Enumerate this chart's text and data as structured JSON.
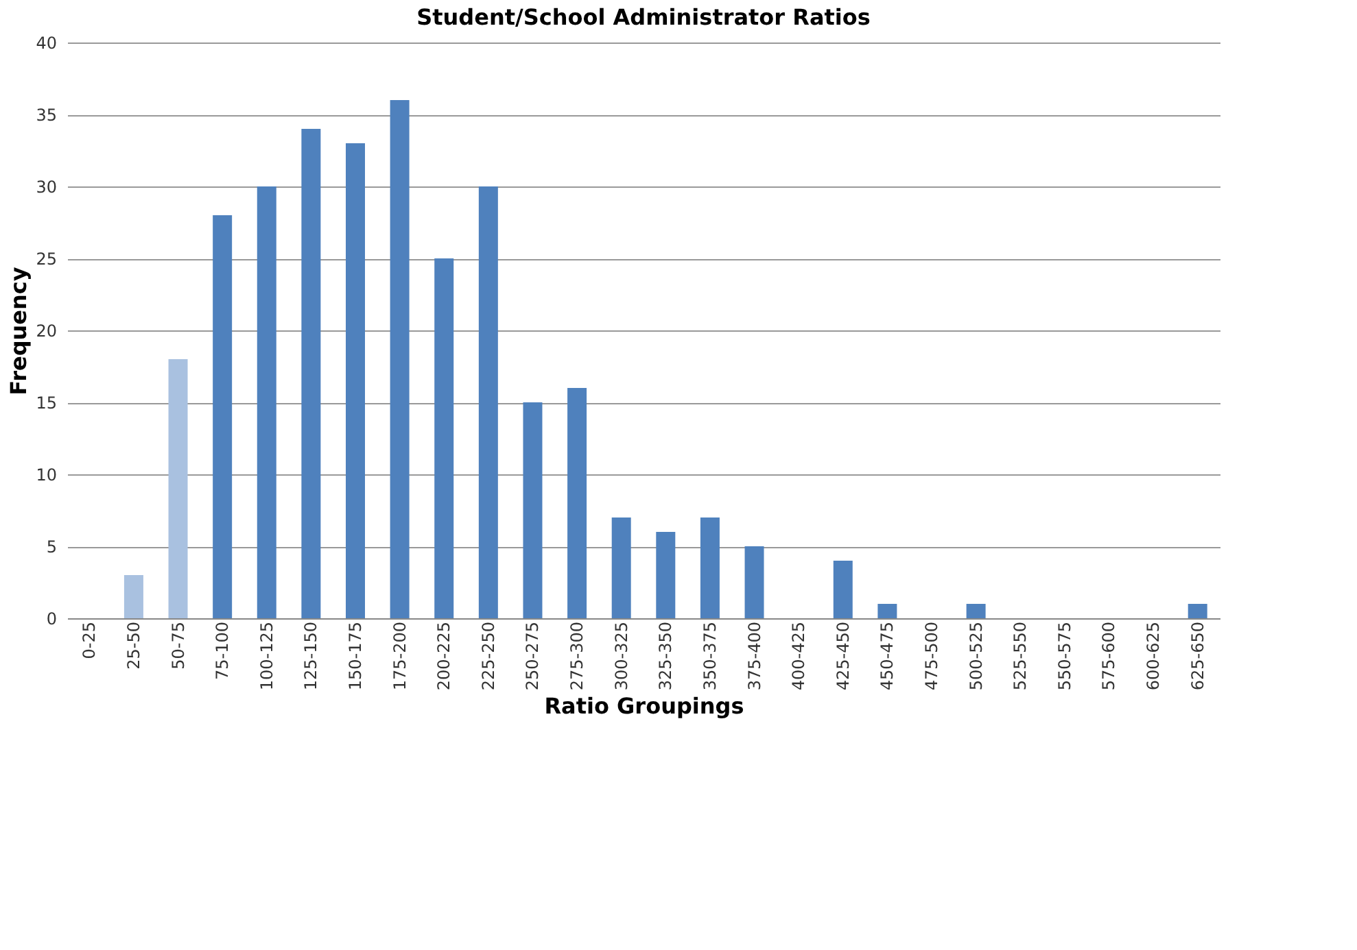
{
  "chart_data": {
    "type": "bar",
    "title": "Student/School Administrator Ratios",
    "xlabel": "Ratio Groupings",
    "ylabel": "Frequency",
    "categories": [
      "0-25",
      "25-50",
      "50-75",
      "75-100",
      "100-125",
      "125-150",
      "150-175",
      "175-200",
      "200-225",
      "225-250",
      "250-275",
      "275-300",
      "300-325",
      "325-350",
      "350-375",
      "375-400",
      "400-425",
      "425-450",
      "450-475",
      "475-500",
      "500-525",
      "525-550",
      "550-575",
      "575-600",
      "600-625",
      "625-650"
    ],
    "values": [
      0,
      3,
      18,
      28,
      30,
      34,
      33,
      36,
      25,
      30,
      15,
      16,
      7,
      6,
      7,
      5,
      0,
      4,
      1,
      0,
      1,
      0,
      0,
      0,
      0,
      1
    ],
    "colors": [
      "#4f81bd",
      "#a9c1e0",
      "#a9c1e0",
      "#4f81bd",
      "#4f81bd",
      "#4f81bd",
      "#4f81bd",
      "#4f81bd",
      "#4f81bd",
      "#4f81bd",
      "#4f81bd",
      "#4f81bd",
      "#4f81bd",
      "#4f81bd",
      "#4f81bd",
      "#4f81bd",
      "#4f81bd",
      "#4f81bd",
      "#4f81bd",
      "#4f81bd",
      "#4f81bd",
      "#4f81bd",
      "#4f81bd",
      "#4f81bd",
      "#4f81bd",
      "#4f81bd"
    ],
    "ylim": [
      0,
      40
    ],
    "yticks": [
      0,
      5,
      10,
      15,
      20,
      25,
      30,
      35,
      40
    ],
    "grid": "y"
  }
}
